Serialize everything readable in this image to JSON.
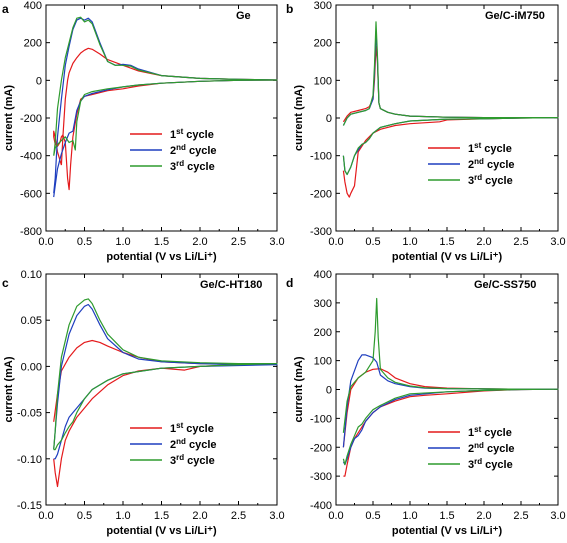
{
  "legend": {
    "suffix": " cycle",
    "sup": [
      "st",
      "nd",
      "rd"
    ],
    "nums": [
      "1",
      "2",
      "3"
    ]
  },
  "colors": {
    "c1": "#e41a1c",
    "c2": "#1f3fbf",
    "c3": "#2e9b2e"
  },
  "chart_data": [
    {
      "type": "line",
      "letter": "a",
      "title": "Ge",
      "xlabel": "potential (V vs Li/Li⁺)",
      "ylabel": "current (mA)",
      "xlim": [
        0,
        3
      ],
      "ylim": [
        -800,
        400
      ],
      "xticks": [
        "0.0",
        "0.5",
        "1.0",
        "1.5",
        "2.0",
        "2.5",
        "3.0"
      ],
      "xtick_values": [
        0,
        0.5,
        1,
        1.5,
        2,
        2.5,
        3
      ],
      "yticks": [
        "400",
        "200",
        "0",
        "-200",
        "-400",
        "-600",
        "-800"
      ],
      "ytick_values": [
        400,
        200,
        0,
        -200,
        -400,
        -600,
        -800
      ],
      "series": [
        {
          "name": "1st cycle",
          "x": [
            0.2,
            0.22,
            0.25,
            0.28,
            0.3,
            0.35,
            0.4,
            0.45,
            0.5,
            0.55,
            0.6,
            0.7,
            0.8,
            1.0,
            1.2,
            1.5,
            2.0,
            2.5,
            3.0,
            2.5,
            2.0,
            1.5,
            1.2,
            1.0,
            0.8,
            0.6,
            0.5,
            0.45,
            0.4,
            0.35,
            0.32,
            0.3,
            0.28,
            0.25,
            0.22,
            0.2,
            0.18,
            0.15,
            0.12,
            0.1,
            0.1,
            0.12,
            0.15,
            0.2
          ],
          "y": [
            -450,
            -300,
            -100,
            0,
            40,
            90,
            120,
            145,
            160,
            170,
            165,
            140,
            110,
            80,
            50,
            25,
            10,
            5,
            2,
            0,
            -5,
            -15,
            -30,
            -45,
            -55,
            -75,
            -85,
            -100,
            -180,
            -300,
            -450,
            -580,
            -520,
            -330,
            -290,
            -300,
            -330,
            -350,
            -340,
            -300,
            -270,
            -300,
            -380,
            -450
          ]
        },
        {
          "name": "2nd cycle",
          "x": [
            0.1,
            0.12,
            0.15,
            0.2,
            0.25,
            0.3,
            0.35,
            0.4,
            0.45,
            0.5,
            0.55,
            0.6,
            0.7,
            0.8,
            0.9,
            1.0,
            1.1,
            1.2,
            1.5,
            2.0,
            2.5,
            3.0,
            2.5,
            2.0,
            1.5,
            1.2,
            1.0,
            0.8,
            0.6,
            0.5,
            0.45,
            0.4,
            0.35,
            0.3,
            0.25,
            0.2,
            0.15,
            0.12,
            0.1
          ],
          "y": [
            -600,
            -520,
            -300,
            -100,
            80,
            180,
            270,
            320,
            330,
            320,
            330,
            310,
            200,
            100,
            80,
            85,
            80,
            60,
            25,
            10,
            5,
            2,
            0,
            -5,
            -15,
            -25,
            -35,
            -50,
            -70,
            -85,
            -110,
            -160,
            -270,
            -280,
            -330,
            -390,
            -470,
            -560,
            -620
          ]
        },
        {
          "name": "3rd cycle",
          "x": [
            0.1,
            0.12,
            0.15,
            0.2,
            0.25,
            0.3,
            0.35,
            0.4,
            0.45,
            0.5,
            0.55,
            0.6,
            0.7,
            0.8,
            0.9,
            1.0,
            1.1,
            1.2,
            1.5,
            2.0,
            2.5,
            3.0,
            2.5,
            2.0,
            1.5,
            1.2,
            1.0,
            0.8,
            0.6,
            0.5,
            0.45,
            0.4,
            0.38,
            0.35,
            0.3,
            0.25,
            0.2,
            0.15,
            0.12,
            0.1
          ],
          "y": [
            -400,
            -330,
            -150,
            0,
            120,
            200,
            280,
            330,
            335,
            310,
            320,
            300,
            190,
            100,
            80,
            80,
            75,
            55,
            25,
            10,
            5,
            2,
            0,
            -5,
            -15,
            -25,
            -35,
            -45,
            -60,
            -75,
            -110,
            -220,
            -370,
            -320,
            -330,
            -300,
            -320,
            -340,
            -360,
            -400
          ]
        }
      ]
    },
    {
      "type": "line",
      "letter": "b",
      "title": "Ge/C-iM750",
      "xlabel": "potential (V vs Li/Li⁺)",
      "ylabel": "current (mA)",
      "xlim": [
        0,
        3
      ],
      "ylim": [
        -300,
        300
      ],
      "xticks": [
        "0.0",
        "0.5",
        "1.0",
        "1.5",
        "2.0",
        "2.5",
        "3.0"
      ],
      "xtick_values": [
        0,
        0.5,
        1,
        1.5,
        2,
        2.5,
        3
      ],
      "yticks": [
        "300",
        "200",
        "100",
        "0",
        "-100",
        "-200",
        "-300"
      ],
      "ytick_values": [
        300,
        200,
        100,
        0,
        -100,
        -200,
        -300
      ],
      "series": [
        {
          "name": "1st cycle",
          "x": [
            0.1,
            0.15,
            0.2,
            0.3,
            0.4,
            0.45,
            0.5,
            0.52,
            0.54,
            0.56,
            0.58,
            0.6,
            0.7,
            0.8,
            1.0,
            1.5,
            2.0,
            2.5,
            3.0,
            2.5,
            2.0,
            1.5,
            1.4,
            1.0,
            0.8,
            0.6,
            0.5,
            0.4,
            0.3,
            0.25,
            0.2,
            0.18,
            0.15,
            0.12,
            0.1
          ],
          "y": [
            -10,
            5,
            15,
            20,
            25,
            30,
            50,
            100,
            190,
            150,
            40,
            25,
            15,
            10,
            5,
            2,
            1,
            1,
            1,
            0,
            -2,
            -5,
            -10,
            -15,
            -20,
            -30,
            -40,
            -60,
            -90,
            -180,
            -200,
            -210,
            -200,
            -170,
            -140
          ]
        },
        {
          "name": "2nd cycle",
          "x": [
            0.1,
            0.15,
            0.2,
            0.3,
            0.4,
            0.45,
            0.5,
            0.52,
            0.54,
            0.56,
            0.58,
            0.6,
            0.7,
            0.8,
            1.0,
            1.5,
            2.0,
            2.5,
            3.0,
            2.5,
            2.0,
            1.5,
            1.0,
            0.8,
            0.6,
            0.5,
            0.45,
            0.4,
            0.35,
            0.3,
            0.25,
            0.2,
            0.15,
            0.12,
            0.1
          ],
          "y": [
            -20,
            0,
            10,
            15,
            20,
            25,
            50,
            120,
            230,
            160,
            40,
            25,
            15,
            10,
            5,
            2,
            1,
            1,
            1,
            0,
            -2,
            -3,
            -8,
            -15,
            -25,
            -40,
            -55,
            -65,
            -70,
            -85,
            -100,
            -130,
            -150,
            -140,
            -100
          ]
        },
        {
          "name": "3rd cycle",
          "x": [
            0.1,
            0.15,
            0.2,
            0.3,
            0.4,
            0.45,
            0.5,
            0.52,
            0.54,
            0.56,
            0.58,
            0.6,
            0.7,
            0.8,
            1.0,
            1.5,
            2.0,
            2.5,
            3.0,
            2.5,
            2.0,
            1.5,
            1.0,
            0.8,
            0.6,
            0.5,
            0.45,
            0.4,
            0.35,
            0.3,
            0.25,
            0.2,
            0.15,
            0.12,
            0.1
          ],
          "y": [
            -20,
            0,
            10,
            15,
            20,
            25,
            60,
            140,
            255,
            170,
            40,
            25,
            15,
            10,
            5,
            2,
            1,
            1,
            1,
            0,
            -2,
            -3,
            -8,
            -15,
            -25,
            -40,
            -55,
            -65,
            -70,
            -80,
            -100,
            -130,
            -150,
            -140,
            -100
          ]
        }
      ]
    },
    {
      "type": "line",
      "letter": "c",
      "title": "Ge/C-HT180",
      "xlabel": "potential (V vs Li/Li⁺)",
      "ylabel": "current (mA)",
      "xlim": [
        0,
        3
      ],
      "ylim": [
        -0.15,
        0.1
      ],
      "xticks": [
        "0.0",
        "0.5",
        "1.0",
        "1.5",
        "2.0",
        "2.5",
        "3.0"
      ],
      "xtick_values": [
        0,
        0.5,
        1,
        1.5,
        2,
        2.5,
        3
      ],
      "yticks": [
        "0.10",
        "0.05",
        "0.00",
        "-0.05",
        "-0.10",
        "-0.15"
      ],
      "ytick_values": [
        0.1,
        0.05,
        0,
        -0.05,
        -0.1,
        -0.15
      ],
      "series": [
        {
          "name": "1st cycle",
          "x": [
            0.1,
            0.15,
            0.2,
            0.3,
            0.4,
            0.5,
            0.6,
            0.7,
            0.8,
            1.0,
            1.2,
            1.5,
            2.0,
            2.5,
            3.0,
            2.5,
            2.0,
            1.8,
            1.5,
            1.2,
            1.0,
            0.8,
            0.6,
            0.5,
            0.4,
            0.3,
            0.25,
            0.2,
            0.15,
            0.12,
            0.1
          ],
          "y": [
            -0.06,
            -0.03,
            -0.005,
            0.01,
            0.02,
            0.026,
            0.028,
            0.026,
            0.022,
            0.015,
            0.01,
            0.005,
            0.003,
            0.003,
            0.003,
            0.002,
            0.0,
            -0.004,
            -0.002,
            -0.005,
            -0.01,
            -0.02,
            -0.035,
            -0.045,
            -0.055,
            -0.07,
            -0.08,
            -0.1,
            -0.13,
            -0.115,
            -0.1
          ]
        },
        {
          "name": "2nd cycle",
          "x": [
            0.1,
            0.12,
            0.15,
            0.2,
            0.3,
            0.4,
            0.5,
            0.55,
            0.6,
            0.7,
            0.8,
            1.0,
            1.2,
            1.5,
            2.0,
            2.5,
            3.0,
            2.5,
            2.0,
            1.5,
            1.0,
            0.8,
            0.6,
            0.5,
            0.4,
            0.35,
            0.3,
            0.25,
            0.2,
            0.15,
            0.12,
            0.1
          ],
          "y": [
            -0.09,
            -0.07,
            -0.04,
            0.0,
            0.035,
            0.055,
            0.065,
            0.067,
            0.062,
            0.045,
            0.03,
            0.015,
            0.008,
            0.005,
            0.003,
            0.002,
            0.002,
            0.001,
            0.0,
            -0.002,
            -0.008,
            -0.015,
            -0.025,
            -0.035,
            -0.045,
            -0.05,
            -0.055,
            -0.065,
            -0.08,
            -0.095,
            -0.1,
            -0.1
          ]
        },
        {
          "name": "3rd cycle",
          "x": [
            0.1,
            0.12,
            0.15,
            0.2,
            0.3,
            0.4,
            0.5,
            0.55,
            0.6,
            0.7,
            0.8,
            1.0,
            1.2,
            1.5,
            2.0,
            2.5,
            3.0,
            2.5,
            2.0,
            1.5,
            1.0,
            0.8,
            0.6,
            0.5,
            0.4,
            0.35,
            0.3,
            0.25,
            0.2,
            0.15,
            0.12,
            0.1
          ],
          "y": [
            -0.09,
            -0.07,
            -0.03,
            0.01,
            0.045,
            0.065,
            0.072,
            0.073,
            0.068,
            0.05,
            0.035,
            0.018,
            0.01,
            0.006,
            0.004,
            0.003,
            0.003,
            0.002,
            0.0,
            -0.002,
            -0.008,
            -0.015,
            -0.025,
            -0.035,
            -0.05,
            -0.06,
            -0.065,
            -0.072,
            -0.08,
            -0.085,
            -0.09,
            -0.09
          ]
        }
      ]
    },
    {
      "type": "line",
      "letter": "d",
      "title": "Ge/C-SS750",
      "xlabel": "potential (V vs Li/Li⁺)",
      "ylabel": "current (mA)",
      "xlim": [
        0,
        3
      ],
      "ylim": [
        -400,
        400
      ],
      "xticks": [
        "0.0",
        "0.5",
        "1.0",
        "1.5",
        "2.0",
        "2.5",
        "3.0"
      ],
      "xtick_values": [
        0,
        0.5,
        1,
        1.5,
        2,
        2.5,
        3
      ],
      "yticks": [
        "400",
        "300",
        "200",
        "100",
        "0",
        "-100",
        "-200",
        "-300",
        "-400"
      ],
      "ytick_values": [
        400,
        300,
        200,
        100,
        0,
        -100,
        -200,
        -300,
        -400
      ],
      "series": [
        {
          "name": "1st cycle",
          "x": [
            0.1,
            0.15,
            0.2,
            0.3,
            0.4,
            0.5,
            0.6,
            0.7,
            0.8,
            1.0,
            1.2,
            1.5,
            2.0,
            2.5,
            3.0,
            2.5,
            2.0,
            1.5,
            1.2,
            1.0,
            0.8,
            0.6,
            0.5,
            0.4,
            0.3,
            0.25,
            0.2,
            0.15,
            0.12,
            0.1
          ],
          "y": [
            -200,
            -80,
            0,
            40,
            60,
            70,
            72,
            60,
            40,
            20,
            10,
            5,
            2,
            1,
            1,
            0,
            -5,
            -15,
            -20,
            -25,
            -40,
            -60,
            -80,
            -110,
            -150,
            -170,
            -200,
            -260,
            -300,
            -300
          ]
        },
        {
          "name": "2nd cycle",
          "x": [
            0.1,
            0.15,
            0.2,
            0.3,
            0.35,
            0.4,
            0.5,
            0.55,
            0.6,
            0.7,
            0.8,
            1.0,
            1.2,
            1.5,
            2.0,
            2.5,
            3.0,
            2.5,
            2.0,
            1.5,
            1.0,
            0.8,
            0.6,
            0.5,
            0.4,
            0.35,
            0.3,
            0.25,
            0.2,
            0.15,
            0.12,
            0.1
          ],
          "y": [
            -200,
            -60,
            30,
            100,
            120,
            120,
            110,
            95,
            50,
            30,
            20,
            10,
            5,
            3,
            2,
            1,
            1,
            0,
            -3,
            -8,
            -20,
            -35,
            -60,
            -80,
            -110,
            -140,
            -160,
            -170,
            -200,
            -240,
            -260,
            -250
          ]
        },
        {
          "name": "3rd cycle",
          "x": [
            0.1,
            0.15,
            0.2,
            0.3,
            0.4,
            0.5,
            0.53,
            0.55,
            0.57,
            0.6,
            0.7,
            0.8,
            1.0,
            1.2,
            1.5,
            2.0,
            2.5,
            3.0,
            2.5,
            2.0,
            1.5,
            1.0,
            0.8,
            0.6,
            0.5,
            0.45,
            0.4,
            0.35,
            0.3,
            0.25,
            0.2,
            0.15,
            0.12,
            0.1
          ],
          "y": [
            -150,
            -40,
            10,
            40,
            60,
            100,
            200,
            315,
            180,
            70,
            40,
            25,
            12,
            6,
            3,
            2,
            1,
            1,
            0,
            -3,
            -8,
            -15,
            -30,
            -55,
            -70,
            -85,
            -100,
            -120,
            -130,
            -160,
            -190,
            -230,
            -260,
            -240
          ]
        }
      ]
    }
  ]
}
